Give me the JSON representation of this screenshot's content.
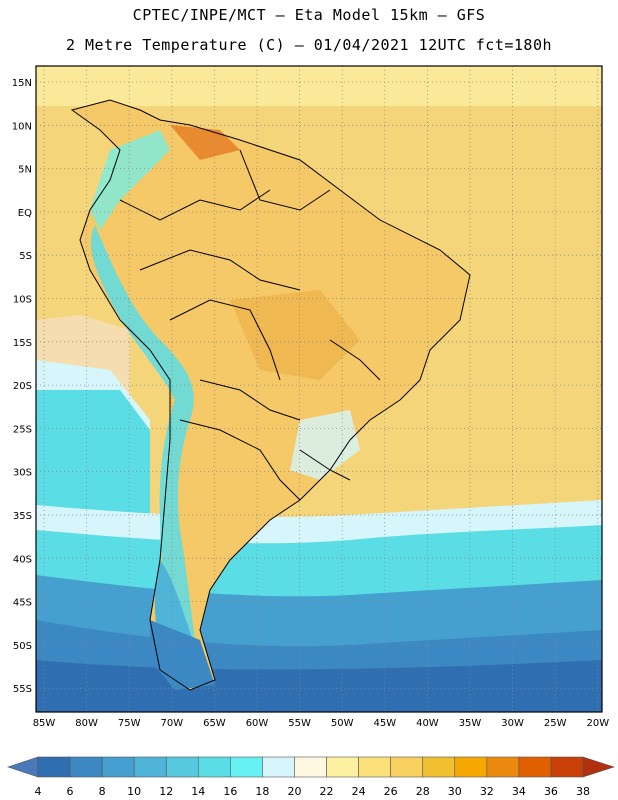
{
  "header": {
    "title_line1": "CPTEC/INPE/MCT –  Eta Model 15km – GFS",
    "title_line2": "2 Metre Temperature (C) – 01/04/2021 12UTC fct=180h"
  },
  "map": {
    "lat_labels": [
      "15N",
      "10N",
      "5N",
      "EQ",
      "5S",
      "10S",
      "15S",
      "20S",
      "25S",
      "30S",
      "35S",
      "40S",
      "45S",
      "50S",
      "55S"
    ],
    "lon_labels": [
      "85W",
      "80W",
      "75W",
      "70W",
      "65W",
      "60W",
      "55W",
      "50W",
      "45W",
      "40W",
      "35W",
      "30W",
      "25W",
      "20W"
    ]
  },
  "colorbar": {
    "labels": [
      "4",
      "6",
      "8",
      "10",
      "12",
      "14",
      "16",
      "18",
      "20",
      "22",
      "24",
      "26",
      "28",
      "30",
      "32",
      "34",
      "36",
      "38"
    ],
    "colors": [
      "#4a78b8",
      "#2f6fb1",
      "#3c88c2",
      "#46a0cf",
      "#4fb5d8",
      "#56c9de",
      "#5bdde6",
      "#66f2f2",
      "#d6f6fb",
      "#fff8e0",
      "#fdf0a0",
      "#fbe07a",
      "#f7d060",
      "#f0c030",
      "#f5a800",
      "#ec8a10",
      "#e06000",
      "#c84008",
      "#b03010"
    ]
  }
}
